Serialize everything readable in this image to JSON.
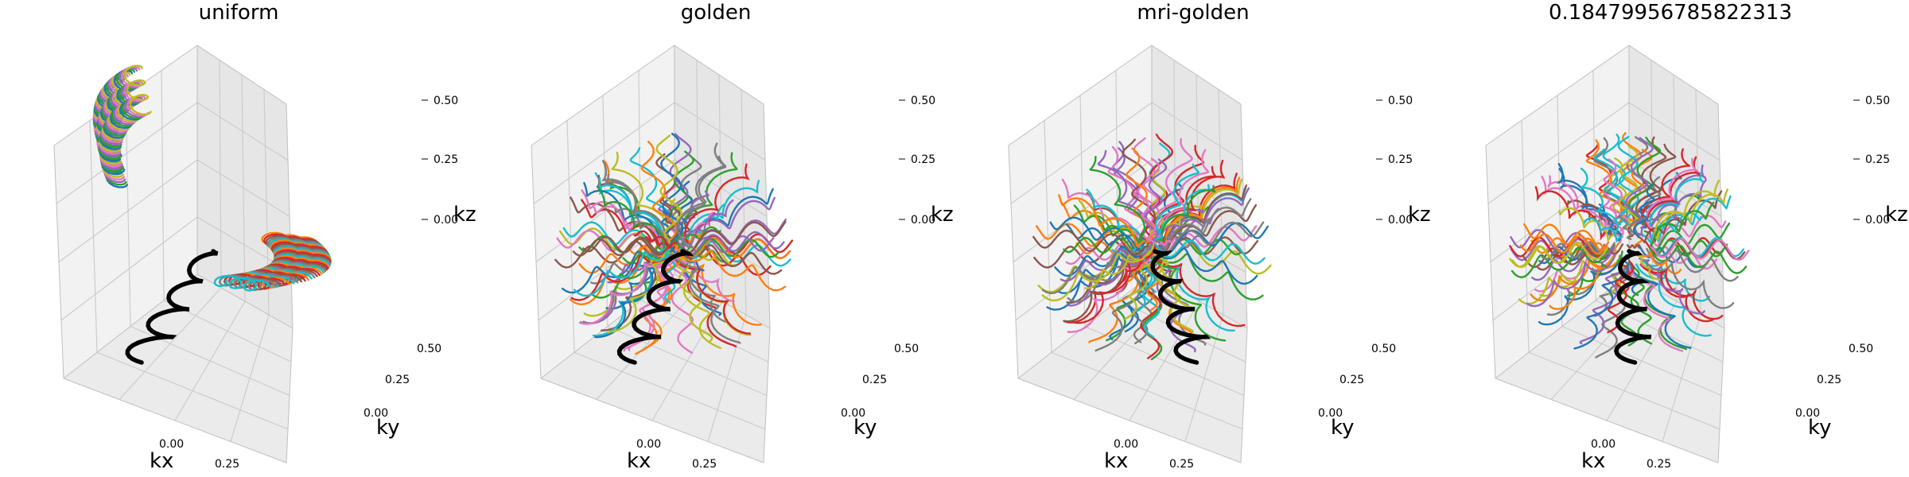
{
  "figure": {
    "background": "#ffffff",
    "pane_colors": [
      "#f2f2f2",
      "#e6e6e6",
      "#ebebeb"
    ],
    "grid_color": "#cccccc",
    "highlight_color": "#000000",
    "palette": [
      "#1f77b4",
      "#ff7f0e",
      "#2ca02c",
      "#d62728",
      "#9467bd",
      "#8c564b",
      "#e377c2",
      "#7f7f7f",
      "#bcbd22",
      "#17becf"
    ]
  },
  "chart_data": [
    {
      "type": "line3d",
      "title": "uniform",
      "xlabel": "kx",
      "ylabel": "ky",
      "zlabel": "kz",
      "xticks": [
        "0.00",
        "0.25"
      ],
      "yticks": [
        "0.00",
        "0.25",
        "0.50"
      ],
      "zticks": [
        "0.00",
        "0.25",
        "0.50"
      ],
      "xlim": [
        -0.5,
        0.5
      ],
      "ylim": [
        -0.5,
        0.5
      ],
      "zlim": [
        -0.5,
        0.5
      ],
      "grid": true,
      "series_description": "helical k-space trajectories, many colored shots arranged as a twisted fan; highlighted shot in black"
    },
    {
      "type": "line3d",
      "title": "golden",
      "xlabel": "kx",
      "ylabel": "ky",
      "zlabel": "kz",
      "xticks": [
        "0.00",
        "0.25"
      ],
      "yticks": [
        "0.00",
        "0.25",
        "0.50"
      ],
      "zticks": [
        "0.00",
        "0.25",
        "0.50"
      ],
      "xlim": [
        -0.5,
        0.5
      ],
      "ylim": [
        -0.5,
        0.5
      ],
      "zlim": [
        -0.5,
        0.5
      ],
      "grid": true,
      "series_description": "helical shots distributed over a sphere with golden-angle ordering; highlighted shot in black"
    },
    {
      "type": "line3d",
      "title": "mri-golden",
      "xlabel": "kx",
      "ylabel": "ky",
      "zlabel": "kz",
      "xticks": [
        "0.00",
        "0.25"
      ],
      "yticks": [
        "0.00",
        "0.25",
        "0.50"
      ],
      "zticks": [
        "0.00",
        "0.25",
        "0.50"
      ],
      "xlim": [
        -0.5,
        0.5
      ],
      "ylim": [
        -0.5,
        0.5
      ],
      "zlim": [
        -0.5,
        0.5
      ],
      "grid": true,
      "series_description": "helical shots distributed over a sphere with MRI golden-angle ordering; highlighted shot in black"
    },
    {
      "type": "line3d",
      "title": "0.18479956785822313",
      "xlabel": "kx",
      "ylabel": "ky",
      "zlabel": "kz",
      "xticks": [
        "0.00",
        "0.25"
      ],
      "yticks": [
        "0.00",
        "0.25",
        "0.50"
      ],
      "zticks": [
        "0.00",
        "0.25",
        "0.50"
      ],
      "xlim": [
        -0.5,
        0.5
      ],
      "ylim": [
        -0.5,
        0.5
      ],
      "zlim": [
        -0.5,
        0.5
      ],
      "grid": true,
      "series_description": "helical shots distributed over a sphere with custom angular increment; highlighted shot in black"
    }
  ]
}
